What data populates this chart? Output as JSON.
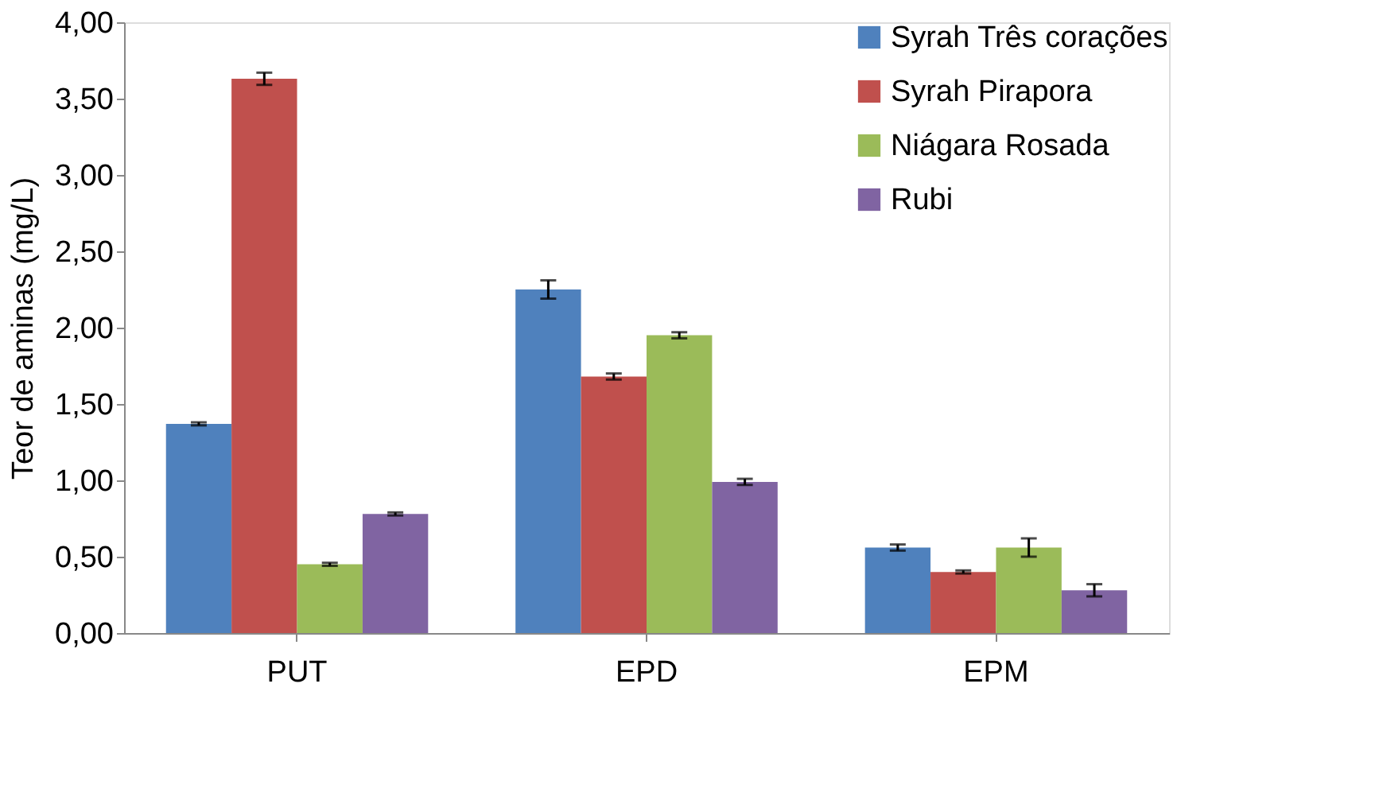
{
  "chart_data": {
    "type": "bar",
    "ylabel": "Teor de aminas (mg/L)",
    "categories": [
      "PUT",
      "EPD",
      "EPM"
    ],
    "series": [
      {
        "name": "Syrah Três corações",
        "color": "#4f81bd",
        "values": [
          1.37,
          2.25,
          0.56
        ],
        "errors": [
          0.01,
          0.06,
          0.02
        ]
      },
      {
        "name": "Syrah Pirapora",
        "color": "#c0504d",
        "values": [
          3.63,
          1.68,
          0.4
        ],
        "errors": [
          0.04,
          0.02,
          0.01
        ]
      },
      {
        "name": "Niágara Rosada",
        "color": "#9bbb59",
        "values": [
          0.45,
          1.95,
          0.56
        ],
        "errors": [
          0.01,
          0.02,
          0.06
        ]
      },
      {
        "name": "Rubi",
        "color": "#8064a2",
        "values": [
          0.78,
          0.99,
          0.28
        ],
        "errors": [
          0.01,
          0.02,
          0.04
        ]
      }
    ],
    "ylim": [
      0,
      4
    ],
    "yticks": [
      {
        "value": 0,
        "label": "0,00"
      },
      {
        "value": 0.5,
        "label": "0,50"
      },
      {
        "value": 1,
        "label": "1,00"
      },
      {
        "value": 1.5,
        "label": "1,50"
      },
      {
        "value": 2,
        "label": "2,00"
      },
      {
        "value": 2.5,
        "label": "2,50"
      },
      {
        "value": 3,
        "label": "3,00"
      },
      {
        "value": 3.5,
        "label": "3,50"
      },
      {
        "value": 4,
        "label": "4,00"
      }
    ],
    "grid": false,
    "legend": "top right"
  }
}
